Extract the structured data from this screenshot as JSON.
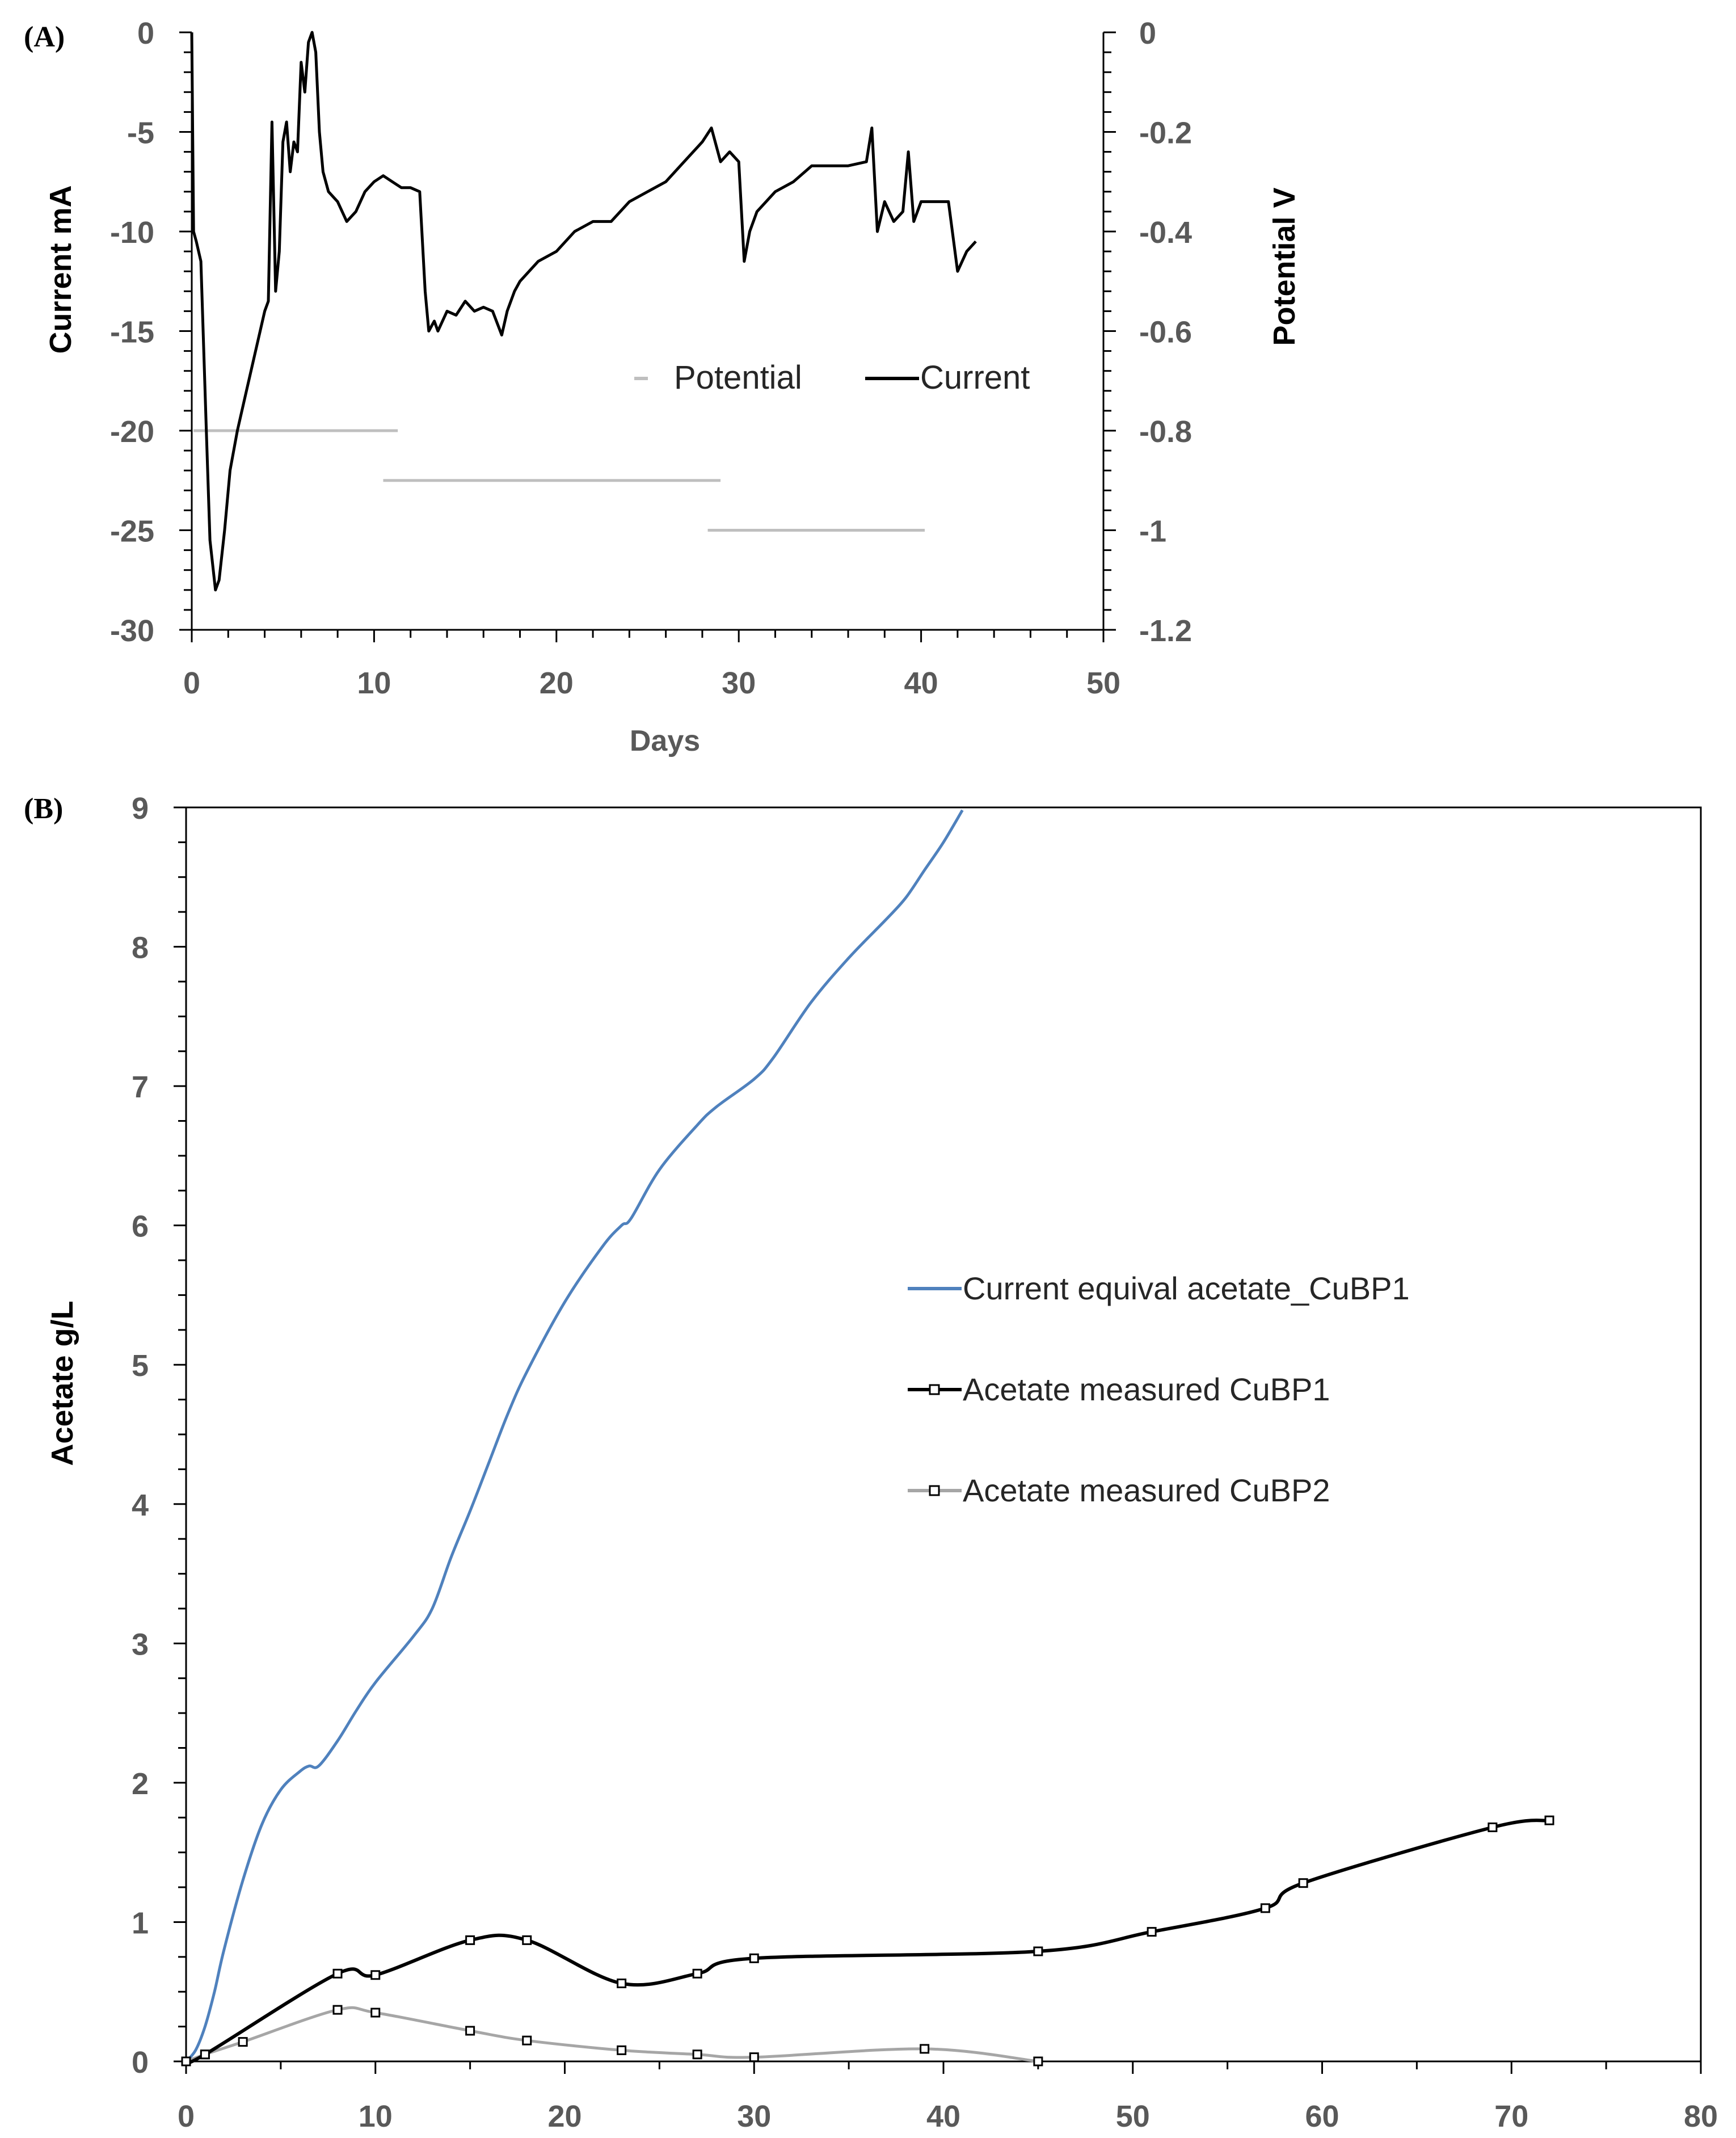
{
  "chart_data": [
    {
      "panel_label": "(A)",
      "type": "line",
      "xlabel": "Days",
      "ylabel": "Current mA",
      "y2label": "Potential V",
      "xlim": [
        0,
        50
      ],
      "ylim": [
        -30,
        0
      ],
      "y2lim": [
        -1.2,
        0
      ],
      "x_ticks": [
        "0",
        "10",
        "20",
        "30",
        "40",
        "50"
      ],
      "y_ticks": [
        "0",
        "-5",
        "-10",
        "-15",
        "-20",
        "-25",
        "-30"
      ],
      "y2_ticks": [
        "0",
        "-0.2",
        "-0.4",
        "-0.6",
        "-0.8",
        "-1",
        "-1.2"
      ],
      "legend_position": "center-right",
      "series": [
        {
          "name": "Potential",
          "axis": "right",
          "color": "#bfbfbf",
          "segments": [
            {
              "x": [
                0.1,
                11.3
              ],
              "y": [
                -0.8,
                -0.8
              ]
            },
            {
              "x": [
                10.5,
                29.0
              ],
              "y": [
                -0.9,
                -0.9
              ]
            },
            {
              "x": [
                28.3,
                40.2
              ],
              "y": [
                -1.0,
                -1.0
              ]
            }
          ]
        },
        {
          "name": "Current",
          "axis": "left",
          "color": "#000000",
          "x": [
            0,
            0.1,
            0.25,
            0.5,
            0.8,
            1.0,
            1.3,
            1.5,
            1.8,
            2.1,
            2.5,
            3.0,
            3.5,
            4.0,
            4.2,
            4.4,
            4.6,
            4.8,
            5.0,
            5.2,
            5.4,
            5.6,
            5.8,
            6.0,
            6.2,
            6.4,
            6.6,
            6.8,
            7.0,
            7.2,
            7.5,
            8.0,
            8.5,
            9.0,
            9.5,
            10.0,
            10.5,
            11.0,
            11.5,
            12.0,
            12.5,
            12.8,
            13.0,
            13.3,
            13.5,
            14.0,
            14.5,
            15.0,
            15.5,
            16.0,
            16.5,
            17.0,
            17.3,
            17.7,
            18.0,
            18.5,
            19.0,
            20.0,
            21.0,
            22.0,
            23.0,
            24.0,
            25.0,
            26.0,
            27.0,
            28.0,
            28.5,
            29.0,
            29.5,
            30.0,
            30.3,
            30.6,
            31.0,
            32.0,
            33.0,
            34.0,
            35.0,
            36.0,
            37.0,
            37.3,
            37.6,
            38.0,
            38.5,
            39.0,
            39.3,
            39.6,
            40.0,
            41.0,
            41.5,
            42.0,
            42.5,
            43.0
          ],
          "y": [
            0,
            -10,
            -10.5,
            -11.5,
            -20,
            -25.5,
            -28,
            -27.5,
            -25,
            -22,
            -20,
            -18,
            -16,
            -14,
            -13.5,
            -4.5,
            -13,
            -11,
            -5.5,
            -4.5,
            -7,
            -5.5,
            -6,
            -1.5,
            -3,
            -0.5,
            0,
            -1,
            -5,
            -7,
            -8,
            -8.5,
            -9.5,
            -9,
            -8,
            -7.5,
            -7.2,
            -7.5,
            -7.8,
            -7.8,
            -8,
            -13,
            -15,
            -14.5,
            -15,
            -14,
            -14.2,
            -13.5,
            -14,
            -13.8,
            -14,
            -15.2,
            -14,
            -13,
            -12.5,
            -12,
            -11.5,
            -11,
            -10,
            -9.5,
            -9.5,
            -8.5,
            -8,
            -7.5,
            -6.5,
            -5.5,
            -4.8,
            -6.5,
            -6,
            -6.5,
            -11.5,
            -10,
            -9,
            -8,
            -7.5,
            -6.7,
            -6.7,
            -6.7,
            -6.5,
            -4.8,
            -10,
            -8.5,
            -9.5,
            -9,
            -6,
            -9.5,
            -8.5,
            -8.5,
            -8.5,
            -12,
            -11,
            -10.5
          ]
        }
      ]
    },
    {
      "panel_label": "(B)",
      "type": "line",
      "xlabel": "",
      "ylabel": "Acetate g/L",
      "xlim": [
        0,
        80
      ],
      "ylim": [
        0,
        9
      ],
      "x_ticks": [
        "0",
        "10",
        "20",
        "30",
        "40",
        "50",
        "60",
        "70",
        "80"
      ],
      "y_ticks": [
        "0",
        "1",
        "2",
        "3",
        "4",
        "5",
        "6",
        "7",
        "8",
        "9"
      ],
      "legend_position": "right",
      "series": [
        {
          "name": "Current equival acetate_CuBP1",
          "color": "#4f81bd",
          "markers": false,
          "x": [
            0,
            0.5,
            1,
            1.5,
            2,
            3,
            4,
            5,
            6,
            6.5,
            7,
            8,
            9,
            10,
            12,
            13,
            14,
            15,
            16,
            17,
            18,
            20,
            22,
            23,
            23.5,
            25,
            27,
            28,
            30,
            31,
            33,
            35,
            37,
            38,
            39,
            40,
            41
          ],
          "y": [
            0,
            0.08,
            0.25,
            0.5,
            0.8,
            1.3,
            1.7,
            1.95,
            2.08,
            2.12,
            2.12,
            2.3,
            2.52,
            2.72,
            3.05,
            3.25,
            3.62,
            3.95,
            4.3,
            4.65,
            4.95,
            5.45,
            5.85,
            6.0,
            6.05,
            6.4,
            6.72,
            6.85,
            7.05,
            7.2,
            7.6,
            7.92,
            8.2,
            8.35,
            8.55,
            8.75,
            8.98
          ]
        },
        {
          "name": "Acetate measured CuBP1",
          "color": "#000000",
          "markers": true,
          "x": [
            0,
            1,
            8,
            10,
            15,
            18,
            23,
            27,
            30,
            45,
            51,
            57,
            59,
            69,
            72
          ],
          "y": [
            0,
            0.05,
            0.63,
            0.62,
            0.87,
            0.87,
            0.56,
            0.63,
            0.74,
            0.79,
            0.93,
            1.1,
            1.28,
            1.68,
            1.73
          ]
        },
        {
          "name": "Acetate measured CuBP2",
          "color": "#a6a6a6",
          "markers": true,
          "x": [
            0,
            1,
            3,
            8,
            10,
            15,
            18,
            23,
            27,
            30,
            39,
            45
          ],
          "y": [
            0,
            0.05,
            0.14,
            0.37,
            0.35,
            0.22,
            0.15,
            0.08,
            0.05,
            0.03,
            0.09,
            0
          ]
        }
      ]
    }
  ]
}
